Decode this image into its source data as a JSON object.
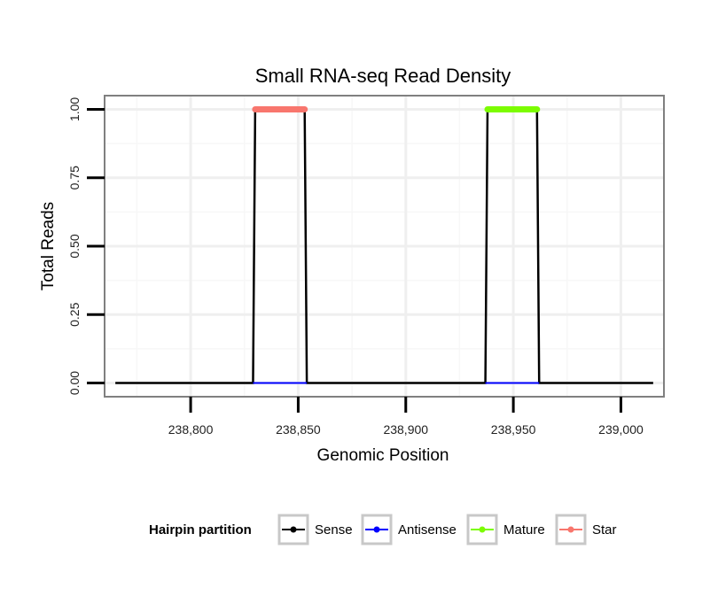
{
  "chart_data": {
    "type": "line",
    "title": "Small RNA-seq Read Density",
    "xlabel": "Genomic Position",
    "ylabel": "Total Reads",
    "xlim": [
      238760,
      239020
    ],
    "ylim": [
      -0.05,
      1.05
    ],
    "x_ticks": [
      238800,
      238850,
      238900,
      238950,
      239000
    ],
    "x_tick_labels": [
      "238,800",
      "238,850",
      "238,900",
      "238,950",
      "239,000"
    ],
    "y_ticks": [
      0,
      0.25,
      0.5,
      0.75,
      1
    ],
    "y_tick_labels": [
      "0.00",
      "0.25",
      "0.50",
      "0.75",
      "1.00"
    ],
    "grid": true,
    "legend": {
      "title": "Hairpin partition",
      "placement": "bottom",
      "entries": [
        {
          "name": "Sense",
          "color": "#000000"
        },
        {
          "name": "Antisense",
          "color": "#0000ff"
        },
        {
          "name": "Mature",
          "color": "#7cfc00"
        },
        {
          "name": "Star",
          "color": "#f8766d"
        }
      ]
    },
    "series": [
      {
        "name": "Sense",
        "color": "#000000",
        "points": [
          [
            238765,
            0
          ],
          [
            238829,
            0
          ],
          [
            238830,
            1
          ],
          [
            238853,
            1
          ],
          [
            238854,
            0
          ],
          [
            238937,
            0
          ],
          [
            238938,
            1
          ],
          [
            238961,
            1
          ],
          [
            238962,
            0
          ],
          [
            239015,
            0
          ]
        ]
      },
      {
        "name": "Antisense",
        "color": "#0000ff",
        "points": [
          [
            238829,
            0
          ],
          [
            238854,
            0
          ],
          [
            238937,
            0
          ],
          [
            238962,
            0
          ]
        ]
      },
      {
        "name": "Mature",
        "color": "#7cfc00",
        "segment": [
          238938,
          238961
        ],
        "value": 1
      },
      {
        "name": "Star",
        "color": "#f8766d",
        "segment": [
          238830,
          238853
        ],
        "value": 1
      }
    ]
  }
}
